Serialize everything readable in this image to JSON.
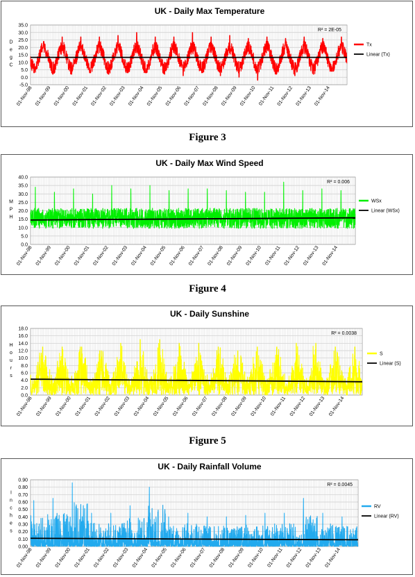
{
  "captions": [
    "Figure 3",
    "Figure 4",
    "Figure 5"
  ],
  "chart_data": [
    {
      "type": "line",
      "title": "UK - Daily Max Temperature",
      "ylabel": "Deg C",
      "ylim": [
        -5,
        35
      ],
      "yticks": [
        "-5.0",
        "0.0",
        "5.0",
        "10.0",
        "15.0",
        "20.0",
        "25.0",
        "30.0",
        "35.0"
      ],
      "categories": [
        "01-Nov-98",
        "01-Nov-99",
        "01-Nov-00",
        "01-Nov-01",
        "01-Nov-02",
        "01-Nov-03",
        "01-Nov-04",
        "01-Nov-05",
        "01-Nov-06",
        "01-Nov-07",
        "01-Nov-08",
        "01-Nov-09",
        "01-Nov-10",
        "01-Nov-11",
        "01-Nov-12",
        "01-Nov-13",
        "01-Nov-14"
      ],
      "r2": "R² = 2E-05",
      "series": [
        {
          "name": "Tx",
          "color": "#ff0000",
          "pattern": "seasonal",
          "mean": 13,
          "amp": 7,
          "noise": 4.5,
          "peakPhase": 0.7,
          "yearly_min": [
            3,
            2,
            2,
            3,
            2,
            3,
            3,
            2,
            1,
            3,
            1,
            0,
            -2,
            2,
            1,
            2,
            4
          ],
          "yearly_max": [
            24,
            27,
            27,
            27,
            28,
            30,
            27,
            27,
            30,
            27,
            28,
            26,
            27,
            26,
            27,
            26,
            27
          ]
        },
        {
          "name": "Linear (Tx)",
          "color": "#000000",
          "trend": [
            13.3,
            13.3
          ]
        }
      ]
    },
    {
      "type": "line",
      "title": "UK - Daily Max Wind Speed",
      "ylabel": "MPH",
      "ylim": [
        0,
        40
      ],
      "yticks": [
        "0.0",
        "5.0",
        "10.0",
        "15.0",
        "20.0",
        "25.0",
        "30.0",
        "35.0",
        "40.0"
      ],
      "categories": [
        "01-Nov-98",
        "01-Nov-99",
        "01-Nov-00",
        "01-Nov-01",
        "01-Nov-02",
        "01-Nov-03",
        "01-Nov-04",
        "01-Nov-05",
        "01-Nov-06",
        "01-Nov-07",
        "01-Nov-08",
        "01-Nov-09",
        "01-Nov-10",
        "01-Nov-11",
        "01-Nov-12",
        "01-Nov-13",
        "01-Nov-14"
      ],
      "r2": "R² = 0.006",
      "series": [
        {
          "name": "WSx",
          "color": "#00ee00",
          "pattern": "noise",
          "mean": 15.5,
          "noise": 6,
          "yearly_max": [
            34,
            31,
            33,
            30,
            35,
            33,
            35,
            32,
            33,
            33,
            32,
            31,
            31,
            37,
            32,
            33,
            32
          ]
        },
        {
          "name": "Linear (WSx)",
          "color": "#000000",
          "trend": [
            14.5,
            15.8
          ]
        }
      ]
    },
    {
      "type": "line",
      "title": "UK - Daily Sunshine",
      "ylabel": "Hours",
      "ylim": [
        0,
        18
      ],
      "yticks": [
        "0.0",
        "2.0",
        "4.0",
        "6.0",
        "8.0",
        "10.0",
        "12.0",
        "14.0",
        "16.0",
        "18.0"
      ],
      "categories": [
        "01-Nov-98",
        "01-Nov-99",
        "01-Nov-00",
        "01-Nov-01",
        "01-Nov-02",
        "01-Nov-03",
        "01-Nov-04",
        "01-Nov-05",
        "01-Nov-06",
        "01-Nov-07",
        "01-Nov-08",
        "01-Nov-09",
        "01-Nov-10",
        "01-Nov-11",
        "01-Nov-12",
        "01-Nov-13",
        "01-Nov-14"
      ],
      "r2": "R² = 0.0038",
      "series": [
        {
          "name": "S",
          "color": "#ffff00",
          "pattern": "sunshine",
          "mean": 4.5,
          "amp": 4,
          "noise": 3.5,
          "peakPhase": 0.62,
          "yearly_max": [
            13,
            13,
            13,
            12,
            14,
            15,
            15,
            14,
            14,
            13,
            12,
            13,
            13,
            14,
            14,
            13,
            13
          ]
        },
        {
          "name": "Linear (S)",
          "color": "#000000",
          "trend": [
            4.3,
            3.6
          ]
        }
      ]
    },
    {
      "type": "line",
      "title": "UK - Daily Rainfall Volume",
      "ylabel": "Inches",
      "ylim": [
        0,
        0.9
      ],
      "yticks": [
        "0.00",
        "0.10",
        "0.20",
        "0.30",
        "0.40",
        "0.50",
        "0.60",
        "0.70",
        "0.80",
        "0.90"
      ],
      "categories": [
        "01-Nov-98",
        "01-Nov-99",
        "01-Nov-00",
        "01-Nov-01",
        "01-Nov-02",
        "01-Nov-03",
        "01-Nov-04",
        "01-Nov-05",
        "01-Nov-06",
        "01-Nov-07",
        "01-Nov-08",
        "01-Nov-09",
        "01-Nov-10",
        "01-Nov-11",
        "01-Nov-12",
        "01-Nov-13",
        "01-Nov-14"
      ],
      "r2": "R² = 0.0045",
      "series": [
        {
          "name": "RV",
          "color": "#22aaee",
          "pattern": "rain",
          "mean": 0.1,
          "noise": 0.12,
          "yearly_max": [
            0.62,
            0.65,
            0.86,
            0.45,
            0.45,
            0.55,
            0.8,
            0.4,
            0.45,
            0.4,
            0.4,
            0.42,
            0.45,
            0.45,
            0.65,
            0.45,
            0.4
          ]
        },
        {
          "name": "Linear (RV)",
          "color": "#000000",
          "trend": [
            0.11,
            0.09
          ]
        }
      ]
    }
  ]
}
